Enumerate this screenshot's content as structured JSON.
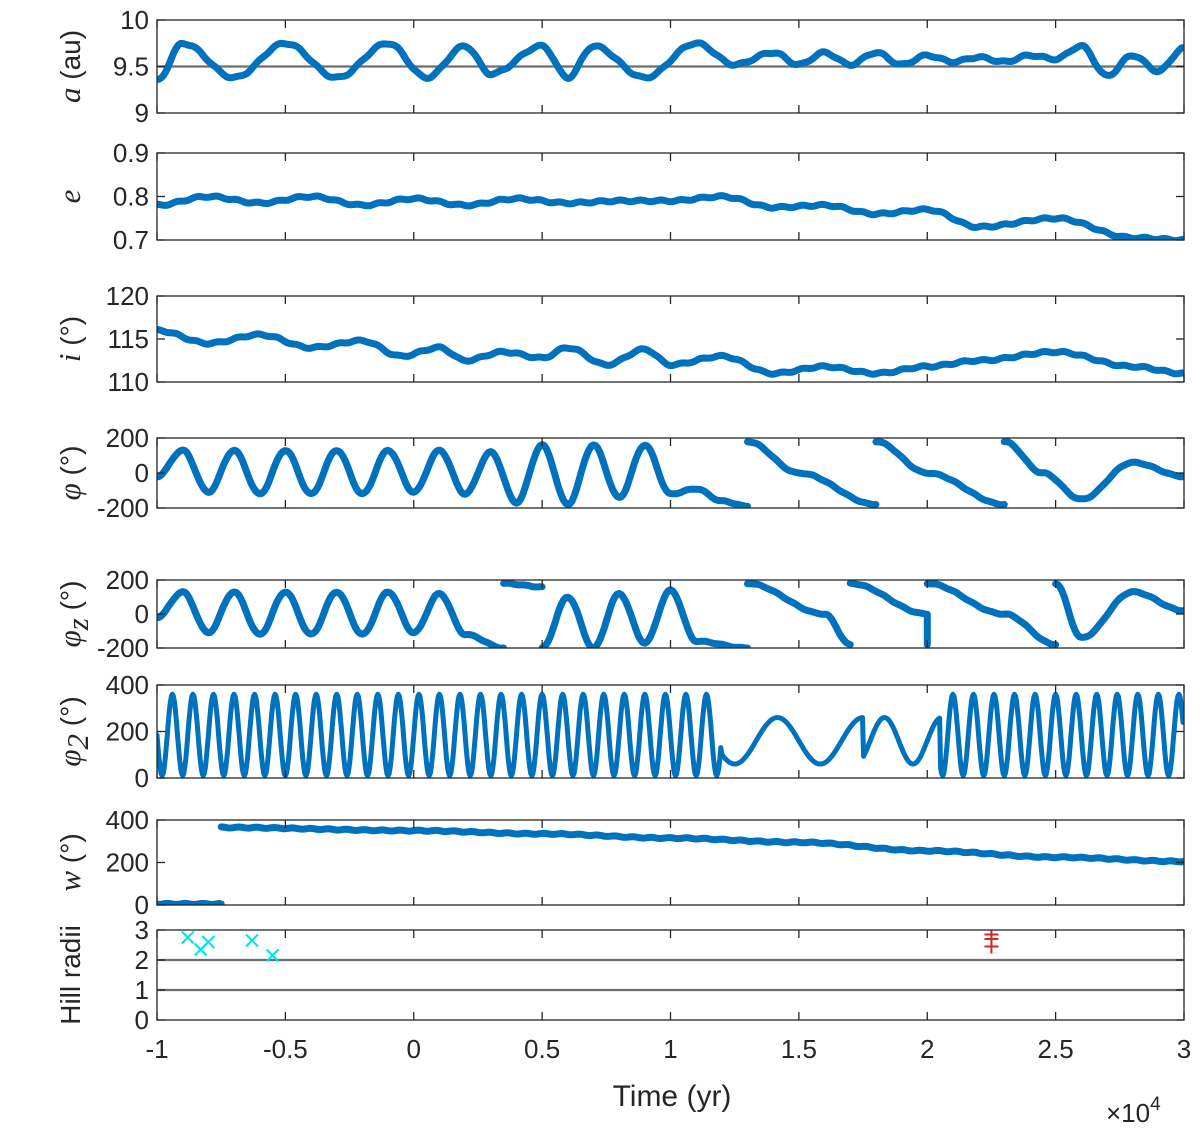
{
  "chart_data": [
    {
      "type": "line",
      "id": "a",
      "ylabel_sym": "a",
      "ylabel_unit": " (au)",
      "ylim": [
        9,
        10
      ],
      "yticks": [
        "9",
        "9.5",
        "10"
      ],
      "yticks_v": [
        9,
        9.5,
        10
      ],
      "refline": 9.5,
      "x": [
        -1,
        -0.9,
        -0.7,
        -0.5,
        -0.3,
        -0.1,
        0.05,
        0.2,
        0.3,
        0.5,
        0.6,
        0.7,
        0.9,
        1.1,
        1.25,
        1.4,
        1.5,
        1.6,
        1.7,
        1.8,
        1.9,
        2.0,
        2.1,
        2.2,
        2.3,
        2.4,
        2.5,
        2.6,
        2.7,
        2.8,
        2.9,
        3.0
      ],
      "y": [
        9.35,
        9.75,
        9.38,
        9.75,
        9.38,
        9.75,
        9.38,
        9.72,
        9.42,
        9.72,
        9.38,
        9.72,
        9.38,
        9.75,
        9.52,
        9.65,
        9.52,
        9.65,
        9.52,
        9.65,
        9.52,
        9.62,
        9.55,
        9.6,
        9.55,
        9.62,
        9.58,
        9.72,
        9.4,
        9.62,
        9.45,
        9.7
      ]
    },
    {
      "type": "line",
      "id": "e",
      "ylabel_sym": "e",
      "ylabel_unit": "",
      "ylim": [
        0.7,
        0.9
      ],
      "yticks": [
        "0.7",
        "0.8",
        "0.9"
      ],
      "yticks_v": [
        0.7,
        0.8,
        0.9
      ],
      "x": [
        -1,
        -0.8,
        -0.6,
        -0.4,
        -0.2,
        0,
        0.2,
        0.4,
        0.6,
        0.8,
        1.0,
        1.2,
        1.4,
        1.6,
        1.8,
        2.0,
        2.2,
        2.5,
        2.8,
        3.0
      ],
      "y": [
        0.78,
        0.8,
        0.785,
        0.8,
        0.78,
        0.795,
        0.78,
        0.795,
        0.785,
        0.79,
        0.79,
        0.8,
        0.775,
        0.78,
        0.76,
        0.77,
        0.73,
        0.75,
        0.705,
        0.7
      ]
    },
    {
      "type": "line",
      "id": "i",
      "ylabel_sym": "i",
      "ylabel_unit": " (°)",
      "ylim": [
        110,
        120
      ],
      "yticks": [
        "110",
        "115",
        "120"
      ],
      "yticks_v": [
        110,
        115,
        120
      ],
      "x": [
        -1,
        -0.8,
        -0.6,
        -0.4,
        -0.2,
        -0.05,
        0.1,
        0.2,
        0.35,
        0.5,
        0.6,
        0.75,
        0.9,
        1.0,
        1.2,
        1.4,
        1.6,
        1.8,
        2.0,
        2.2,
        2.5,
        2.8,
        3.0
      ],
      "y": [
        116,
        114.5,
        115.5,
        114,
        114.8,
        113,
        114,
        112.5,
        113.5,
        112.8,
        114,
        112,
        113.8,
        112,
        113,
        111,
        111.8,
        111,
        111.8,
        112.5,
        113.5,
        111.8,
        111
      ]
    },
    {
      "type": "line",
      "id": "phi",
      "ylabel_sym": "φ",
      "ylabel_unit": " (°)",
      "ylim": [
        -200,
        200
      ],
      "yticks": [
        "-200",
        "0",
        "200"
      ],
      "yticks_v": [
        -200,
        0,
        200
      ],
      "segments": [
        {
          "x": [
            -1,
            -0.9,
            -0.8,
            -0.7,
            -0.6,
            -0.5,
            -0.4,
            -0.3,
            -0.2,
            -0.1,
            0,
            0.1,
            0.2,
            0.3,
            0.4,
            0.5,
            0.6,
            0.7,
            0.8,
            0.9,
            1.0,
            1.1,
            1.2,
            1.3
          ],
          "y": [
            -20,
            130,
            -110,
            130,
            -120,
            130,
            -120,
            130,
            -120,
            130,
            -110,
            130,
            -120,
            120,
            -170,
            160,
            -180,
            160,
            -140,
            160,
            -120,
            -90,
            -160,
            -190
          ]
        },
        {
          "x": [
            1.3,
            1.5,
            1.8
          ],
          "y": [
            180,
            0,
            -180
          ]
        },
        {
          "x": [
            1.8,
            2.0,
            2.3
          ],
          "y": [
            180,
            0,
            -180
          ]
        },
        {
          "x": [
            2.3,
            2.45,
            2.6,
            2.8,
            3.0
          ],
          "y": [
            180,
            0,
            -150,
            60,
            -20
          ]
        }
      ]
    },
    {
      "type": "line",
      "id": "phiz",
      "ylabel_sym": "φ",
      "ylabel_sub": "z",
      "ylabel_unit": " (°)",
      "ylim": [
        -200,
        200
      ],
      "yticks": [
        "-200",
        "0",
        "200"
      ],
      "yticks_v": [
        -200,
        0,
        200
      ],
      "segments": [
        {
          "x": [
            -1,
            -0.9,
            -0.8,
            -0.7,
            -0.6,
            -0.5,
            -0.4,
            -0.3,
            -0.2,
            -0.1,
            0,
            0.1,
            0.2,
            0.35
          ],
          "y": [
            -20,
            130,
            -110,
            130,
            -120,
            130,
            -120,
            130,
            -120,
            130,
            -110,
            120,
            -120,
            -200
          ]
        },
        {
          "x": [
            0.35,
            0.5
          ],
          "y": [
            180,
            160
          ]
        },
        {
          "x": [
            0.5,
            0.6,
            0.7,
            0.8,
            0.9,
            1.0,
            1.1,
            1.3
          ],
          "y": [
            -200,
            100,
            -200,
            120,
            -170,
            140,
            -160,
            -200
          ]
        },
        {
          "x": [
            1.3,
            1.6,
            1.7
          ],
          "y": [
            180,
            0,
            -180
          ]
        },
        {
          "x": [
            1.7,
            2.0,
            2.0
          ],
          "y": [
            180,
            0,
            -180
          ]
        },
        {
          "x": [
            2.0,
            2.3,
            2.5
          ],
          "y": [
            180,
            0,
            -180
          ]
        },
        {
          "x": [
            2.5,
            2.6,
            2.8,
            3.0
          ],
          "y": [
            180,
            -140,
            130,
            20
          ]
        }
      ]
    },
    {
      "type": "scatter-line",
      "id": "phi2",
      "ylabel_sym": "φ",
      "ylabel_sub": "2",
      "ylabel_unit": " (°)",
      "ylim": [
        0,
        400
      ],
      "yticks": [
        "0",
        "200",
        "400"
      ],
      "yticks_v": [
        0,
        200,
        400
      ],
      "x": [
        -1,
        -0.7,
        -0.5,
        -0.2,
        0,
        0.3,
        0.5,
        0.8,
        1.0,
        1.2,
        1.3,
        1.45,
        1.6,
        1.75,
        1.9,
        2.05,
        2.2,
        2.4,
        2.6,
        2.8,
        3.0
      ],
      "y": [
        350,
        10,
        360,
        0,
        350,
        20,
        360,
        0,
        350,
        20,
        260,
        80,
        260,
        40,
        200,
        180,
        140,
        320,
        10,
        350,
        100
      ]
    },
    {
      "type": "line",
      "id": "w",
      "ylabel_sym": "w",
      "ylabel_unit": " (°)",
      "ylim": [
        0,
        400
      ],
      "yticks": [
        "0",
        "200",
        "400"
      ],
      "yticks_v": [
        0,
        200,
        400
      ],
      "segments": [
        {
          "x": [
            -1,
            -0.75
          ],
          "y": [
            5,
            5
          ]
        },
        {
          "x": [
            -0.75,
            0,
            0.5,
            1.0,
            1.5,
            2.0,
            2.5,
            3.0
          ],
          "y": [
            365,
            350,
            335,
            315,
            295,
            255,
            225,
            205
          ]
        }
      ]
    },
    {
      "type": "scatter",
      "id": "hill",
      "ylabel": "Hill radii",
      "ylim": [
        0,
        3
      ],
      "yticks": [
        "0",
        "1",
        "2",
        "3"
      ],
      "yticks_v": [
        0,
        1,
        2,
        3
      ],
      "reflines": [
        1,
        2
      ],
      "points_cyan": {
        "x": [
          -0.88,
          -0.83,
          -0.8,
          -0.63,
          -0.55
        ],
        "y": [
          2.75,
          2.35,
          2.6,
          2.65,
          2.15
        ],
        "color": "#00E5E5"
      },
      "points_red": {
        "x": [
          2.25,
          2.25,
          2.25
        ],
        "y": [
          2.85,
          2.7,
          2.45
        ],
        "color": "#D62728"
      }
    }
  ],
  "x_axis": {
    "label": "Time (yr)",
    "xlim": [
      -1,
      3
    ],
    "ticks": [
      "-1",
      "-0.5",
      "0",
      "0.5",
      "1",
      "1.5",
      "2",
      "2.5",
      "3"
    ],
    "ticks_v": [
      -1,
      -0.5,
      0,
      0.5,
      1,
      1.5,
      2,
      2.5,
      3
    ],
    "exponent_prefix": "×10",
    "exponent": "4"
  },
  "colors": {
    "series": "#0072BD",
    "axis": "#262626",
    "refline": "#6e6e6e"
  }
}
